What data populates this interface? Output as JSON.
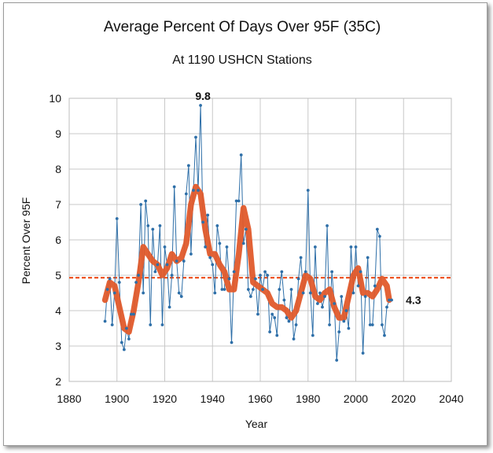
{
  "chart_data": {
    "type": "line",
    "title": "Average Percent Of Days Over 95F (35C)",
    "subtitle": "At 1190 USHCN Stations",
    "xlabel": "Year",
    "ylabel": "Percent Over 95F",
    "xlim": [
      1880,
      2040
    ],
    "ylim": [
      2,
      10
    ],
    "xticks": [
      1880,
      1900,
      1920,
      1940,
      1960,
      1980,
      2000,
      2020,
      2040
    ],
    "yticks": [
      2,
      3,
      4,
      5,
      6,
      7,
      8,
      9,
      10
    ],
    "grid": true,
    "reference_line": {
      "y": 4.93,
      "style": "dashed",
      "color": "#ee5522"
    },
    "annotations": [
      {
        "text": "9.8",
        "x": 1936,
        "y": 9.8
      },
      {
        "text": "4.3",
        "x": 2015,
        "y": 4.3
      }
    ],
    "series": [
      {
        "style": "line-markers",
        "color": "#2e6fa8",
        "x": [
          1895,
          1896,
          1897,
          1898,
          1899,
          1900,
          1901,
          1902,
          1903,
          1904,
          1905,
          1906,
          1907,
          1908,
          1909,
          1910,
          1911,
          1912,
          1913,
          1914,
          1915,
          1916,
          1917,
          1918,
          1919,
          1920,
          1921,
          1922,
          1923,
          1924,
          1925,
          1926,
          1927,
          1928,
          1929,
          1930,
          1931,
          1932,
          1933,
          1934,
          1935,
          1936,
          1937,
          1938,
          1939,
          1940,
          1941,
          1942,
          1943,
          1944,
          1945,
          1946,
          1947,
          1948,
          1949,
          1950,
          1951,
          1952,
          1953,
          1954,
          1955,
          1956,
          1957,
          1958,
          1959,
          1960,
          1961,
          1962,
          1963,
          1964,
          1965,
          1966,
          1967,
          1968,
          1969,
          1970,
          1971,
          1972,
          1973,
          1974,
          1975,
          1976,
          1977,
          1978,
          1979,
          1980,
          1981,
          1982,
          1983,
          1984,
          1985,
          1986,
          1987,
          1988,
          1989,
          1990,
          1991,
          1992,
          1993,
          1994,
          1995,
          1996,
          1997,
          1998,
          1999,
          2000,
          2001,
          2002,
          2003,
          2004,
          2005,
          2006,
          2007,
          2008,
          2009,
          2010,
          2011,
          2012,
          2013,
          2014,
          2015
        ],
        "values": [
          3.7,
          4.6,
          4.9,
          3.6,
          4.5,
          6.6,
          4.8,
          3.1,
          2.9,
          3.5,
          3.2,
          3.9,
          3.9,
          4.8,
          5.0,
          7.0,
          4.5,
          7.1,
          6.4,
          3.6,
          6.3,
          5.1,
          5.3,
          6.4,
          3.6,
          5.8,
          5.3,
          4.1,
          5.0,
          7.5,
          5.4,
          4.5,
          4.4,
          5.4,
          7.3,
          8.1,
          5.6,
          7.4,
          8.9,
          7.4,
          9.8,
          6.5,
          5.8,
          6.7,
          5.5,
          5.3,
          4.5,
          6.4,
          5.9,
          4.6,
          4.6,
          5.8,
          4.9,
          3.1,
          5.1,
          7.1,
          7.1,
          8.4,
          5.9,
          6.3,
          4.6,
          4.4,
          4.6,
          4.9,
          3.9,
          5.0,
          4.6,
          5.1,
          5.0,
          3.4,
          3.9,
          3.8,
          3.3,
          4.6,
          5.1,
          4.3,
          3.8,
          3.7,
          4.6,
          3.2,
          3.6,
          4.9,
          5.5,
          4.5,
          5.1,
          7.4,
          4.5,
          3.3,
          5.8,
          4.2,
          4.5,
          4.1,
          4.4,
          6.4,
          3.6,
          5.1,
          4.2,
          2.6,
          3.4,
          4.4,
          3.7,
          4.0,
          3.5,
          5.8,
          4.5,
          5.8,
          4.7,
          5.1,
          2.8,
          4.4,
          5.5,
          3.6,
          3.6,
          4.7,
          6.3,
          6.1,
          3.6,
          3.3,
          4.1,
          4.3,
          4.3
        ]
      },
      {
        "style": "smoothed-thick",
        "color": "#e05a2b",
        "x": [
          1895,
          1897,
          1899,
          1901,
          1903,
          1905,
          1907,
          1909,
          1911,
          1913,
          1915,
          1917,
          1919,
          1921,
          1923,
          1925,
          1927,
          1929,
          1931,
          1933,
          1935,
          1937,
          1939,
          1941,
          1943,
          1945,
          1947,
          1949,
          1951,
          1953,
          1955,
          1957,
          1959,
          1961,
          1963,
          1965,
          1967,
          1969,
          1971,
          1973,
          1975,
          1977,
          1979,
          1981,
          1983,
          1985,
          1987,
          1989,
          1991,
          1993,
          1995,
          1997,
          1999,
          2001,
          2003,
          2005,
          2007,
          2009,
          2011,
          2013,
          2014
        ],
        "values": [
          4.3,
          4.8,
          4.7,
          4.1,
          3.5,
          3.4,
          4.0,
          4.8,
          5.8,
          5.6,
          5.4,
          5.3,
          5.0,
          5.2,
          5.6,
          5.4,
          5.5,
          5.9,
          7.0,
          7.5,
          7.3,
          6.3,
          5.6,
          5.6,
          5.3,
          5.1,
          4.6,
          4.6,
          5.6,
          6.9,
          6.3,
          4.8,
          4.7,
          4.6,
          4.5,
          4.2,
          4.1,
          4.1,
          4.0,
          3.8,
          4.0,
          4.5,
          5.0,
          4.9,
          4.4,
          4.3,
          4.5,
          4.6,
          4.1,
          3.8,
          3.8,
          4.4,
          5.0,
          5.2,
          4.5,
          4.5,
          4.4,
          4.6,
          4.9,
          4.7,
          4.3
        ]
      }
    ]
  }
}
